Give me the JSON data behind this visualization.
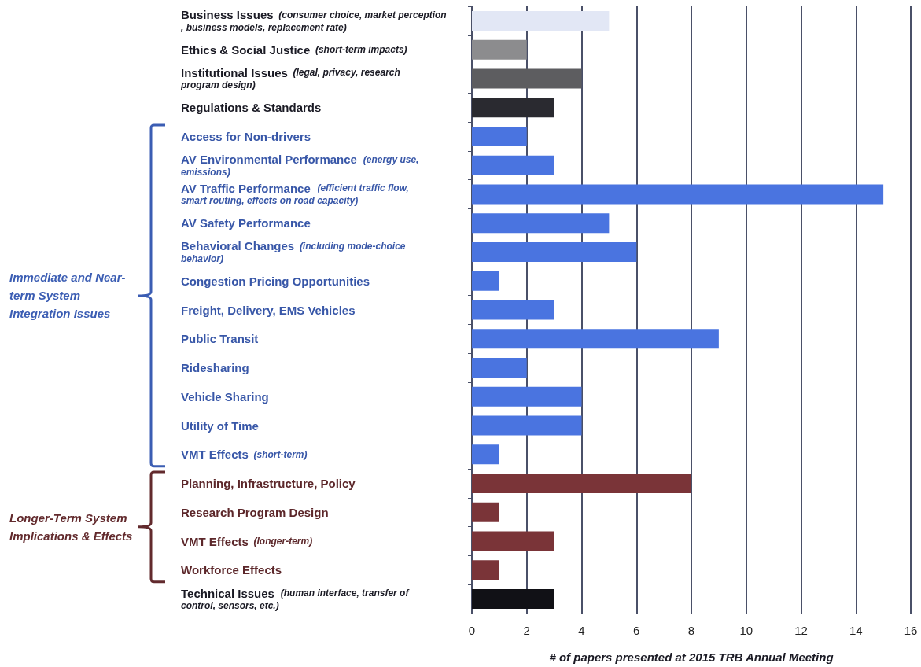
{
  "chart_data": {
    "type": "bar",
    "orientation": "horizontal",
    "xlabel": "# of papers presented at 2015 TRB Annual Meeting",
    "categories": [
      "Business Issues (consumer choice, market perception, business models, replacement rate)",
      "Ethics & Social Justice (short-term impacts)",
      "Institutional Issues (legal, privacy, research program design)",
      "Regulations & Standards",
      "Access for Non-drivers",
      "AV Environmental Performance (energy use, emissions)",
      "AV Traffic Performance (efficient traffic flow, smart routing, effects on road capacity)",
      "AV Safety Performance",
      "Behavioral Changes (including mode-choice behavior)",
      "Congestion Pricing Opportunities",
      "Freight, Delivery, EMS Vehicles",
      "Public Transit",
      "Ridesharing",
      "Vehicle Sharing",
      "Utility of Time",
      "VMT Effects (short-term)",
      "Planning, Infrastructure, Policy",
      "Research Program Design",
      "VMT Effects (longer-term)",
      "Workforce Effects",
      "Technical Issues (human interface, transfer of control, sensors, etc.)"
    ],
    "values": [
      5,
      2,
      4,
      3,
      2,
      3,
      15,
      5,
      6,
      1,
      3,
      9,
      2,
      4,
      4,
      1,
      8,
      1,
      3,
      1,
      3
    ],
    "colors": [
      "#e2e7f5",
      "#8c8c8e",
      "#5d5d60",
      "#2a2a30",
      "#4a74e0",
      "#4a74e0",
      "#4a74e0",
      "#4a74e0",
      "#4a74e0",
      "#4a74e0",
      "#4a74e0",
      "#4a74e0",
      "#4a74e0",
      "#4a74e0",
      "#4a74e0",
      "#4a74e0",
      "#7a3438",
      "#7a3438",
      "#7a3438",
      "#7a3438",
      "#111116"
    ],
    "xlim": [
      0,
      16
    ],
    "xticks": [
      0,
      2,
      4,
      6,
      8,
      10,
      12,
      14,
      16
    ],
    "grid": "x",
    "legend": false,
    "annotations": [
      "Immediate and Near-term System Integration Issues",
      "Longer-Term System Implications & Effects"
    ]
  }
}
